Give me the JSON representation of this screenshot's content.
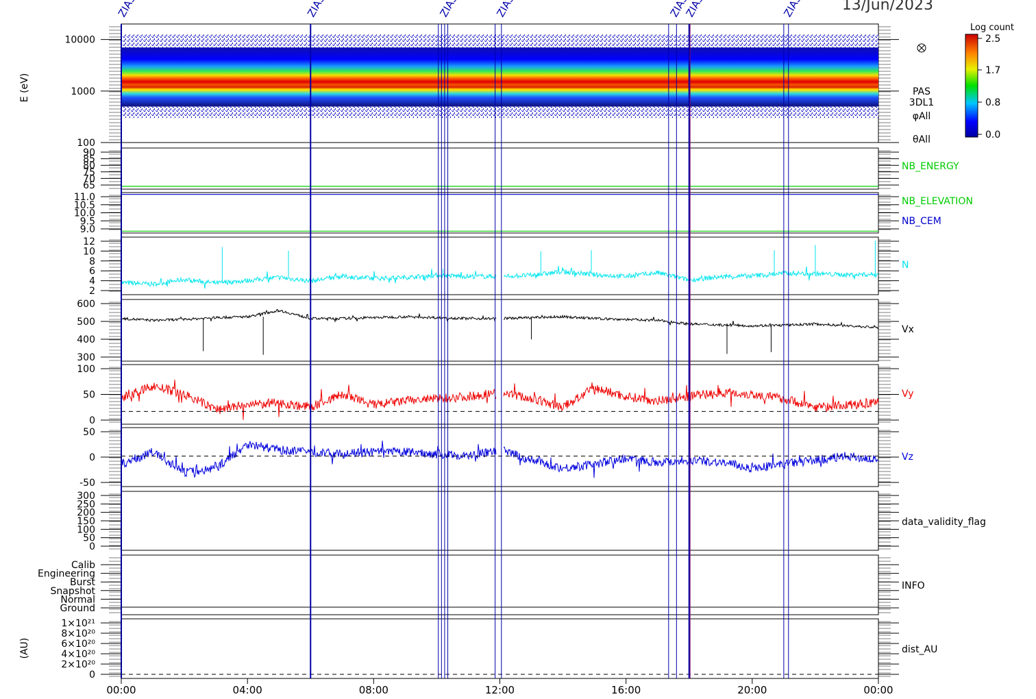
{
  "header": {
    "date": "13/Jun/2023"
  },
  "colorbar": {
    "title": "Log count",
    "ticks": [
      "2.5",
      "1.7",
      "0.8",
      "0.0"
    ]
  },
  "spectrogram": {
    "ylabel": "E (eV)",
    "side_labels": [
      "PAS",
      "3DL1",
      "φAll",
      "θAll"
    ],
    "icon_name": "circle-cross-icon"
  },
  "events": {
    "label": "ZIAS"
  },
  "dist_ylabel": "(AU)",
  "info_levels": [
    "Calib",
    "Engineering",
    "Burst",
    "Snapshot",
    "Normal",
    "Ground"
  ],
  "colors": {
    "nb_energy": "#00cc00",
    "nb_elevation": "#00cc00",
    "nb_cem": "#0000cc",
    "n": "#00e5ee",
    "vx": "#000000",
    "vy": "#ee0000",
    "vz": "#0000dd",
    "event": "#0000aa",
    "event_alt": "#7a0066"
  },
  "chart_data": [
    {
      "type": "heatmap",
      "panel": "spectrogram",
      "xlabel": "",
      "ylabel": "E (eV)",
      "yscale": "log",
      "yticks": [
        "10000",
        "1000",
        "100"
      ],
      "ylim": [
        100,
        20000
      ],
      "peak_energy_eV": 1200,
      "colorscale": "rainbow",
      "zlim": [
        0.0,
        2.5
      ]
    },
    {
      "type": "line",
      "panel": "nb_energy_elevation",
      "legend": [
        "NB_ENERGY"
      ],
      "yticks": [
        "90",
        "85",
        "80",
        "75",
        "70",
        "65"
      ],
      "ylim": [
        63,
        92
      ],
      "series": [
        {
          "name": "NB_ENERGY",
          "values": [
            65,
            65
          ]
        }
      ]
    },
    {
      "type": "line",
      "panel": "nb_elevation_cem",
      "legend": [
        "NB_ELEVATION",
        "NB_CEM"
      ],
      "yticks": [
        "11.0",
        "10.5",
        "10.0",
        "9.5",
        "9.0"
      ],
      "ylim": [
        8.9,
        11.1
      ],
      "series": [
        {
          "name": "NB_ELEVATION",
          "values": [
            9.0,
            9.0
          ]
        },
        {
          "name": "NB_CEM",
          "values": [
            11.0,
            11.0
          ]
        }
      ]
    },
    {
      "type": "line",
      "panel": "n",
      "legend": [
        "N"
      ],
      "yticks": [
        "12",
        "10",
        "8",
        "6",
        "4",
        "2"
      ],
      "ylim": [
        1.5,
        12.5
      ],
      "x": [
        0,
        1,
        2,
        3,
        4,
        5,
        6,
        7,
        8,
        9,
        10,
        11,
        12,
        13,
        14,
        15,
        16,
        17,
        18,
        19,
        20,
        21,
        22,
        23,
        24
      ],
      "series": [
        {
          "name": "N",
          "values": [
            3.8,
            3.5,
            4.4,
            3.7,
            4.2,
            4.8,
            4.1,
            5.0,
            4.6,
            4.8,
            5.2,
            5.0,
            5.0,
            5.2,
            5.9,
            5.3,
            5.0,
            5.7,
            4.3,
            4.9,
            5.1,
            5.6,
            5.5,
            5.3,
            5.4
          ]
        }
      ],
      "spikes": [
        {
          "x": 3.2,
          "y": 10.6
        },
        {
          "x": 5.3,
          "y": 9.9
        },
        {
          "x": 10.2,
          "y": 6.4
        },
        {
          "x": 13.3,
          "y": 9.8
        },
        {
          "x": 14.9,
          "y": 10.0
        },
        {
          "x": 20.7,
          "y": 10.0
        },
        {
          "x": 22.0,
          "y": 11.0
        },
        {
          "x": 23.9,
          "y": 11.8
        }
      ]
    },
    {
      "type": "line",
      "panel": "vx",
      "legend": [
        "Vx"
      ],
      "yticks": [
        "600",
        "500",
        "400",
        "300"
      ],
      "ylim": [
        280,
        620
      ],
      "x": [
        0,
        1,
        2,
        3,
        4,
        5,
        6,
        7,
        8,
        9,
        10,
        11,
        12,
        13,
        14,
        15,
        16,
        17,
        18,
        19,
        20,
        21,
        22,
        23,
        24
      ],
      "series": [
        {
          "name": "Vx",
          "values": [
            515,
            505,
            510,
            520,
            525,
            560,
            515,
            515,
            520,
            525,
            520,
            515,
            515,
            520,
            525,
            515,
            510,
            505,
            485,
            480,
            475,
            478,
            485,
            475,
            465
          ]
        }
      ],
      "spikes": [
        {
          "x": 2.6,
          "y": 335
        },
        {
          "x": 4.5,
          "y": 315
        },
        {
          "x": 13.0,
          "y": 400
        },
        {
          "x": 19.2,
          "y": 320
        },
        {
          "x": 20.6,
          "y": 330
        },
        {
          "x": 24.0,
          "y": 310
        }
      ]
    },
    {
      "type": "line",
      "panel": "vy",
      "legend": [
        "Vy"
      ],
      "yticks": [
        "100",
        "50",
        "0"
      ],
      "ylim": [
        -30,
        110
      ],
      "reference_line": 0,
      "x": [
        0,
        1,
        2,
        3,
        4,
        5,
        6,
        7,
        8,
        9,
        10,
        11,
        12,
        13,
        14,
        15,
        16,
        17,
        18,
        19,
        20,
        21,
        22,
        23,
        24
      ],
      "series": [
        {
          "name": "Vy",
          "values": [
            30,
            60,
            40,
            5,
            15,
            20,
            10,
            40,
            15,
            25,
            30,
            35,
            45,
            30,
            10,
            55,
            35,
            25,
            35,
            45,
            40,
            30,
            10,
            15,
            20
          ]
        }
      ]
    },
    {
      "type": "line",
      "panel": "vz",
      "legend": [
        "Vz"
      ],
      "yticks": [
        "50",
        "0",
        "-50"
      ],
      "ylim": [
        -75,
        70
      ],
      "reference_line": 0,
      "x": [
        0,
        1,
        2,
        3,
        4,
        5,
        6,
        7,
        8,
        9,
        10,
        11,
        12,
        13,
        14,
        15,
        16,
        17,
        18,
        19,
        20,
        21,
        22,
        23,
        24
      ],
      "series": [
        {
          "name": "Vz",
          "values": [
            -20,
            10,
            -40,
            -30,
            30,
            15,
            10,
            5,
            10,
            10,
            5,
            0,
            15,
            -10,
            -30,
            -20,
            -5,
            -15,
            -10,
            -15,
            -30,
            -20,
            -10,
            0,
            -10
          ]
        }
      ]
    },
    {
      "type": "line",
      "panel": "data_validity_flag",
      "legend": [
        "data_validity_flag"
      ],
      "yticks": [
        "300",
        "250",
        "200",
        "150",
        "100",
        "50",
        "0"
      ],
      "ylim": [
        -10,
        310
      ]
    },
    {
      "type": "line",
      "panel": "info",
      "legend": [
        "INFO"
      ],
      "yticks": [
        "Calib",
        "Engineering",
        "Burst",
        "Snapshot",
        "Normal",
        "Ground"
      ]
    },
    {
      "type": "line",
      "panel": "dist_au",
      "legend": [
        "dist_AU"
      ],
      "ylabel": "(AU)",
      "yticks": [
        "1×10²¹",
        "8×10²⁰",
        "6×10²⁰",
        "4×10²⁰",
        "2×10²⁰",
        "0"
      ],
      "ylim": [
        -5e+19,
        1.05e+21
      ],
      "reference_line": 0
    },
    {
      "type": "table",
      "panel": "x_axis_and_events",
      "x_ticks": [
        "00:00",
        "04:00",
        "08:00",
        "12:00",
        "16:00",
        "20:00",
        "00:00"
      ],
      "xlim_hours": [
        0,
        24
      ],
      "event_hours": [
        0.0,
        6.0,
        10.05,
        10.15,
        10.25,
        10.35,
        11.85,
        12.05,
        17.35,
        17.6,
        18.0,
        18.03,
        21.0,
        21.15
      ],
      "labelled_events": [
        0.0,
        6.0,
        10.2,
        12.0,
        17.5,
        18.0,
        21.1
      ]
    }
  ]
}
